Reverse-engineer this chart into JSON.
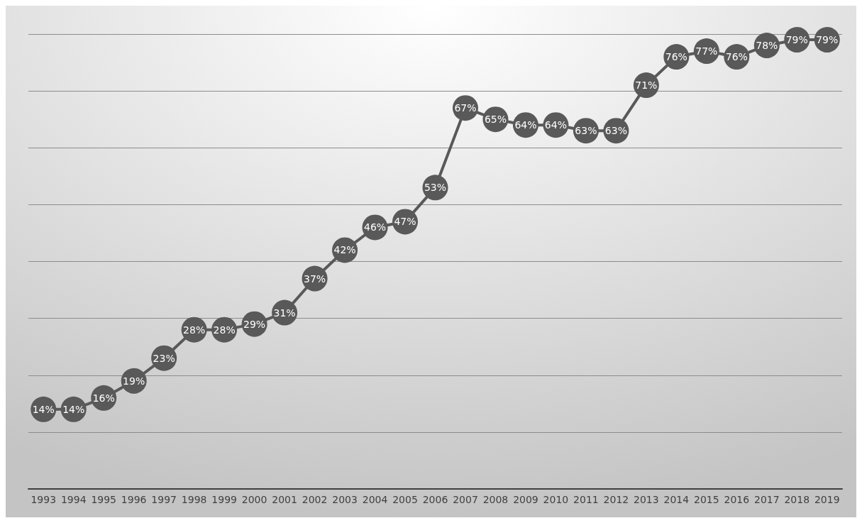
{
  "chart_data": {
    "type": "line",
    "categories": [
      "1993",
      "1994",
      "1995",
      "1996",
      "1997",
      "1998",
      "1999",
      "2000",
      "2001",
      "2002",
      "2003",
      "2004",
      "2005",
      "2006",
      "2007",
      "2008",
      "2009",
      "2010",
      "2011",
      "2012",
      "2013",
      "2014",
      "2015",
      "2016",
      "2017",
      "2018",
      "2019"
    ],
    "series": [
      {
        "color": "#595959",
        "values": [
          14,
          14,
          16,
          19,
          23,
          28,
          28,
          29,
          31,
          37,
          42,
          46,
          47,
          53,
          67,
          65,
          64,
          64,
          63,
          63,
          71,
          76,
          77,
          76,
          78,
          79,
          79
        ],
        "value_labels": [
          "14%",
          "14%",
          "16%",
          "19%",
          "23%",
          "28%",
          "28%",
          "29%",
          "31%",
          "37%",
          "42%",
          "46%",
          "47%",
          "53%",
          "67%",
          "65%",
          "64%",
          "64%",
          "63%",
          "63%",
          "71%",
          "76%",
          "77%",
          "76%",
          "78%",
          "79%",
          "79%"
        ]
      }
    ],
    "ylim": [
      0,
      80
    ],
    "yticks": [
      {
        "value": 0,
        "label": null
      },
      {
        "value": 10,
        "label": null
      },
      {
        "value": 20,
        "label": null
      },
      {
        "value": 30,
        "label": null
      },
      {
        "value": 40,
        "label": null
      },
      {
        "value": 50,
        "label": null
      },
      {
        "value": 60,
        "label": null
      },
      {
        "value": 70,
        "label": null
      },
      {
        "value": 80,
        "label": null
      }
    ],
    "grid": "y",
    "tick_labels": "x",
    "marker": "circle",
    "line_style": "solid"
  }
}
